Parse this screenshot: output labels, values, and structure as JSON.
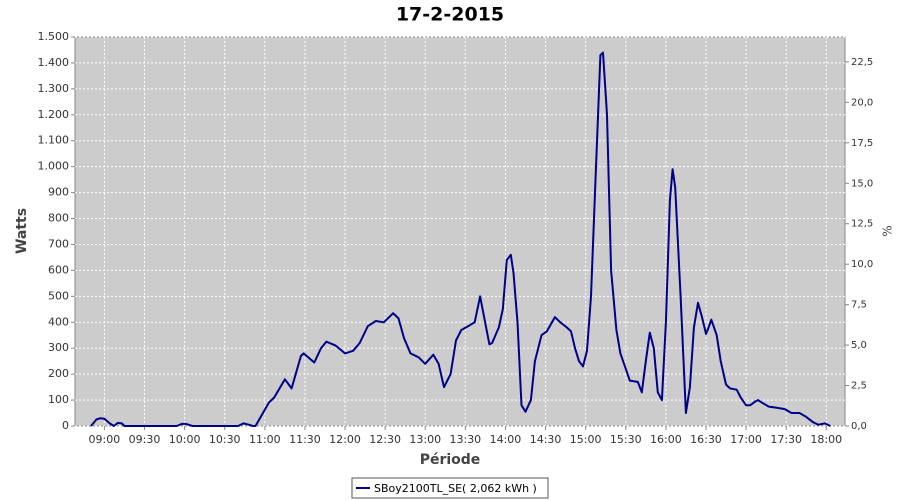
{
  "chart_data": {
    "type": "line",
    "title": "17-2-2015",
    "xlabel": "Période",
    "ylabel": "Watts",
    "y2label": "%",
    "x": [
      "08:50",
      "08:54",
      "08:57",
      "09:00",
      "09:04",
      "09:07",
      "09:10",
      "09:13",
      "09:15",
      "09:54",
      "09:58",
      "10:01",
      "10:06",
      "10:40",
      "10:44",
      "10:48",
      "10:51",
      "10:53",
      "11:03",
      "11:07",
      "11:15",
      "11:20",
      "11:27",
      "11:29",
      "11:37",
      "11:42",
      "11:46",
      "11:53",
      "12:00",
      "12:06",
      "12:11",
      "12:17",
      "12:23",
      "12:29",
      "12:36",
      "12:40",
      "12:44",
      "12:49",
      "12:55",
      "13:00",
      "13:06",
      "13:10",
      "13:14",
      "13:19",
      "13:23",
      "13:27",
      "13:32",
      "13:37",
      "13:41",
      "13:44",
      "13:48",
      "13:50",
      "13:55",
      "13:58",
      "14:01",
      "14:04",
      "14:06",
      "14:09",
      "14:12",
      "14:15",
      "14:19",
      "14:22",
      "14:27",
      "14:31",
      "14:37",
      "14:41",
      "14:46",
      "14:49",
      "14:52",
      "14:55",
      "14:58",
      "15:01",
      "15:04",
      "15:07",
      "15:11",
      "15:13",
      "15:16",
      "15:19",
      "15:23",
      "15:26",
      "15:30",
      "15:33",
      "15:39",
      "15:42",
      "15:45",
      "15:48",
      "15:51",
      "15:54",
      "15:57",
      "16:00",
      "16:03",
      "16:05",
      "16:07",
      "16:11",
      "16:15",
      "16:18",
      "16:21",
      "16:24",
      "16:27",
      "16:30",
      "16:32",
      "16:34",
      "16:38",
      "16:41",
      "16:45",
      "16:48",
      "16:53",
      "16:56",
      "17:00",
      "17:03",
      "17:07",
      "17:09",
      "17:12",
      "17:17",
      "17:23",
      "17:29",
      "17:34",
      "17:40",
      "17:45",
      "17:50",
      "17:54",
      "17:59",
      "18:03"
    ],
    "series": [
      {
        "name": "SBoy2100TL_SE( 2,062 kWh )",
        "color": "#00008b",
        "values": [
          0,
          25,
          30,
          28,
          10,
          0,
          12,
          10,
          0,
          0,
          8,
          8,
          0,
          0,
          10,
          5,
          0,
          0,
          90,
          110,
          180,
          145,
          270,
          280,
          245,
          300,
          325,
          310,
          280,
          290,
          320,
          385,
          405,
          400,
          435,
          415,
          340,
          280,
          265,
          240,
          275,
          240,
          150,
          200,
          330,
          370,
          385,
          400,
          500,
          420,
          315,
          320,
          380,
          450,
          640,
          660,
          590,
          400,
          80,
          55,
          100,
          250,
          350,
          365,
          420,
          400,
          380,
          365,
          300,
          250,
          230,
          290,
          500,
          900,
          1430,
          1440,
          1200,
          600,
          370,
          280,
          220,
          175,
          170,
          130,
          250,
          360,
          300,
          130,
          100,
          400,
          870,
          990,
          920,
          500,
          50,
          150,
          380,
          475,
          420,
          355,
          380,
          410,
          350,
          250,
          160,
          145,
          140,
          110,
          80,
          80,
          95,
          100,
          90,
          75,
          70,
          65,
          50,
          50,
          35,
          15,
          5,
          10,
          0
        ]
      }
    ],
    "xlim": [
      "08:38",
      "18:14"
    ],
    "xticks": [
      "09:00",
      "09:30",
      "10:00",
      "10:30",
      "11:00",
      "11:30",
      "12:00",
      "12:30",
      "13:00",
      "13:30",
      "14:00",
      "14:30",
      "15:00",
      "15:30",
      "16:00",
      "16:30",
      "17:00",
      "17:30",
      "18:00"
    ],
    "ylim": [
      0,
      1500
    ],
    "yticks": [
      0,
      100,
      200,
      300,
      400,
      500,
      600,
      700,
      800,
      900,
      {
        "value": 1000,
        "label": "1.000"
      },
      {
        "value": 1100,
        "label": "1.100"
      },
      {
        "value": 1200,
        "label": "1.200"
      },
      {
        "value": 1300,
        "label": "1.300"
      },
      {
        "value": 1400,
        "label": "1.400"
      },
      {
        "value": 1500,
        "label": "1.500"
      }
    ],
    "y2lim": [
      0,
      24.04
    ],
    "y2ticks": [
      {
        "value": 0,
        "label": "0,0"
      },
      {
        "value": 2.5,
        "label": "2,5"
      },
      {
        "value": 5,
        "label": "5,0"
      },
      {
        "value": 7.5,
        "label": "7,5"
      },
      {
        "value": 10,
        "label": "10,0"
      },
      {
        "value": 12.5,
        "label": "12,5"
      },
      {
        "value": 15,
        "label": "15,0"
      },
      {
        "value": 17.5,
        "label": "17,5"
      },
      {
        "value": 20,
        "label": "20,0"
      },
      {
        "value": 22.5,
        "label": "22,5"
      }
    ],
    "grid": true,
    "legend": "bottom"
  }
}
